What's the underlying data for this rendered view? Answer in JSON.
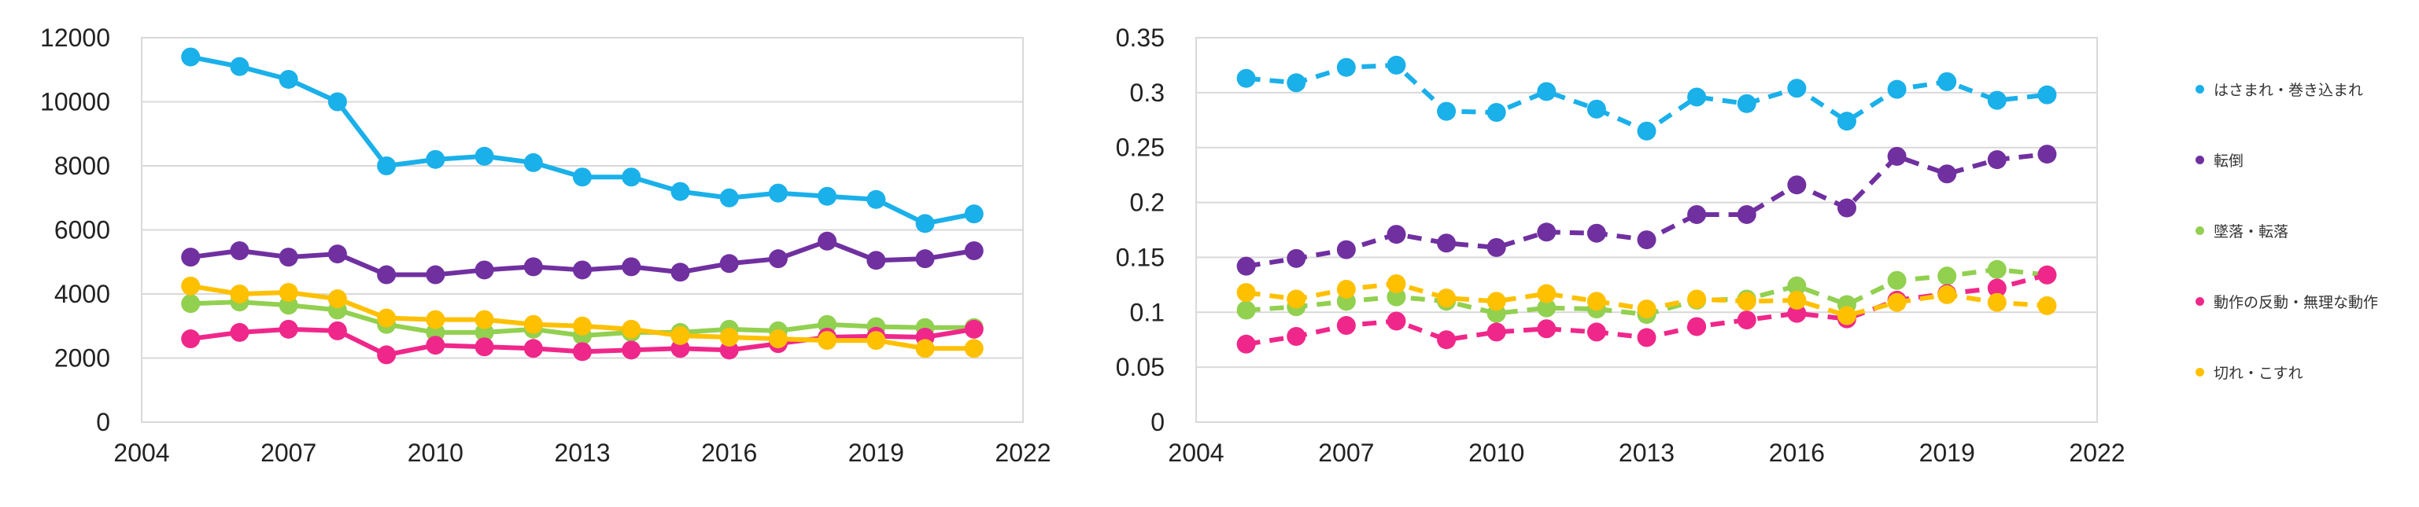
{
  "chart_data": [
    {
      "type": "line",
      "line_style": "solid",
      "x": [
        2005,
        2006,
        2007,
        2008,
        2009,
        2010,
        2011,
        2012,
        2013,
        2014,
        2015,
        2016,
        2017,
        2018,
        2019,
        2020,
        2021
      ],
      "xlim": [
        2004,
        2022
      ],
      "xticks": [
        "2004",
        "2007",
        "2010",
        "2013",
        "2016",
        "2019",
        "2022"
      ],
      "ylim": [
        0,
        12000
      ],
      "yticks": [
        "0",
        "2000",
        "4000",
        "6000",
        "8000",
        "10000",
        "12000"
      ],
      "grid": "horizontal",
      "series": [
        {
          "name": "はさまれ・巻き込まれ",
          "color": "#1AB0EA",
          "values": [
            11400,
            11100,
            10700,
            10000,
            8000,
            8200,
            8300,
            8100,
            7650,
            7650,
            7200,
            7000,
            7150,
            7050,
            6950,
            6200,
            6500
          ]
        },
        {
          "name": "転倒",
          "color": "#7030A0",
          "values": [
            5150,
            5350,
            5150,
            5250,
            4600,
            4600,
            4750,
            4850,
            4750,
            4850,
            4680,
            4950,
            5100,
            5650,
            5050,
            5100,
            5350
          ]
        },
        {
          "name": "墜落・転落",
          "color": "#92D050",
          "values": [
            3700,
            3750,
            3650,
            3500,
            3050,
            2800,
            2800,
            2900,
            2700,
            2800,
            2800,
            2900,
            2850,
            3050,
            2980,
            2950,
            2950
          ]
        },
        {
          "name": "動作の反動・無理な動作",
          "color": "#F0278A",
          "values": [
            2600,
            2800,
            2900,
            2850,
            2100,
            2400,
            2350,
            2300,
            2200,
            2250,
            2300,
            2250,
            2450,
            2650,
            2680,
            2650,
            2900
          ]
        },
        {
          "name": "切れ・こすれ",
          "color": "#FFC000",
          "values": [
            4250,
            4000,
            4050,
            3850,
            3250,
            3200,
            3200,
            3050,
            3000,
            2900,
            2700,
            2650,
            2600,
            2550,
            2550,
            2300,
            2300
          ]
        }
      ]
    },
    {
      "type": "line",
      "line_style": "dashed",
      "x": [
        2005,
        2006,
        2007,
        2008,
        2009,
        2010,
        2011,
        2012,
        2013,
        2014,
        2015,
        2016,
        2017,
        2018,
        2019,
        2020,
        2021
      ],
      "xlim": [
        2004,
        2022
      ],
      "xticks": [
        "2004",
        "2007",
        "2010",
        "2013",
        "2016",
        "2019",
        "2022"
      ],
      "ylim": [
        0,
        0.35
      ],
      "yticks": [
        "0",
        "0.05",
        "0.1",
        "0.15",
        "0.2",
        "0.25",
        "0.3",
        "0.35"
      ],
      "grid": "horizontal",
      "legend_position": "right",
      "series": [
        {
          "name": "はさまれ・巻き込まれ",
          "color": "#1AB0EA",
          "values": [
            0.313,
            0.309,
            0.323,
            0.325,
            0.283,
            0.282,
            0.301,
            0.285,
            0.265,
            0.296,
            0.29,
            0.304,
            0.274,
            0.303,
            0.31,
            0.293,
            0.298
          ]
        },
        {
          "name": "転倒",
          "color": "#7030A0",
          "values": [
            0.142,
            0.149,
            0.157,
            0.171,
            0.163,
            0.159,
            0.173,
            0.172,
            0.166,
            0.189,
            0.189,
            0.216,
            0.195,
            0.242,
            0.226,
            0.239,
            0.244
          ]
        },
        {
          "name": "墜落・転落",
          "color": "#92D050",
          "values": [
            0.102,
            0.105,
            0.11,
            0.114,
            0.11,
            0.099,
            0.104,
            0.103,
            0.098,
            0.111,
            0.112,
            0.124,
            0.107,
            0.129,
            0.133,
            0.139,
            0.134
          ]
        },
        {
          "name": "動作の反動・無理な動作",
          "color": "#F0278A",
          "values": [
            0.071,
            0.078,
            0.088,
            0.092,
            0.075,
            0.082,
            0.085,
            0.082,
            0.077,
            0.087,
            0.093,
            0.099,
            0.094,
            0.111,
            0.117,
            0.122,
            0.134
          ]
        },
        {
          "name": "切れ・こすれ",
          "color": "#FFC000",
          "values": [
            0.118,
            0.112,
            0.121,
            0.126,
            0.113,
            0.11,
            0.117,
            0.11,
            0.103,
            0.112,
            0.11,
            0.111,
            0.097,
            0.109,
            0.116,
            0.109,
            0.106
          ]
        }
      ]
    }
  ],
  "legend": {
    "items": [
      {
        "label": "はさまれ・巻き込まれ",
        "color": "#1AB0EA"
      },
      {
        "label": "転倒",
        "color": "#7030A0"
      },
      {
        "label": "墜落・転落",
        "color": "#92D050"
      },
      {
        "label": "動作の反動・無理な動作",
        "color": "#F0278A"
      },
      {
        "label": "切れ・こすれ",
        "color": "#FFC000"
      }
    ]
  }
}
